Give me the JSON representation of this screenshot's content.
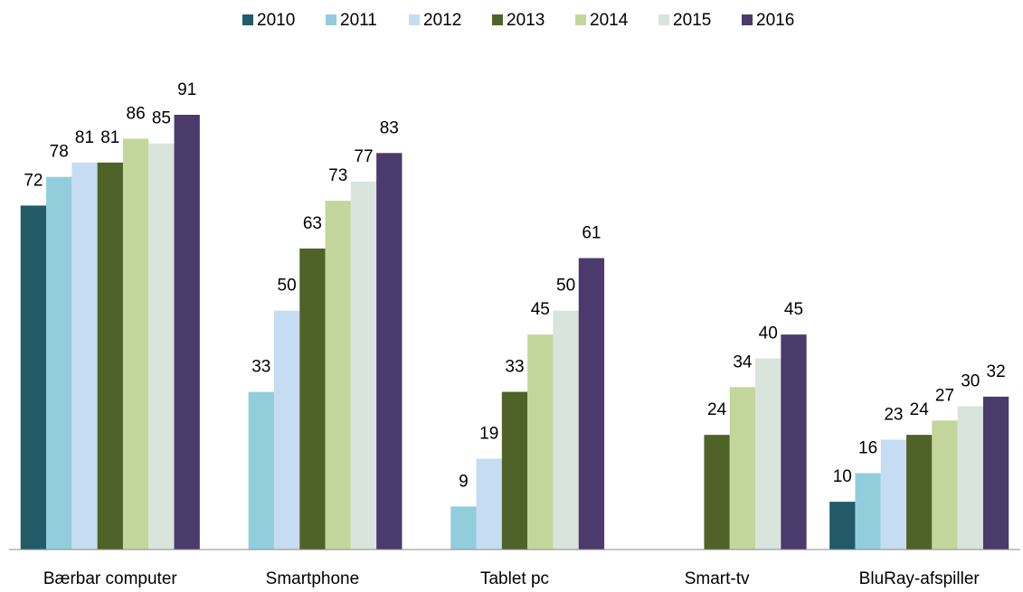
{
  "chart_data": {
    "type": "bar",
    "categories": [
      "Bærbar computer",
      "Smartphone",
      "Tablet pc",
      "Smart-tv",
      "BluRay-afspiller"
    ],
    "series": [
      {
        "name": "2010",
        "color": "#235a68",
        "values": [
          72,
          null,
          null,
          null,
          10
        ]
      },
      {
        "name": "2011",
        "color": "#92cddc",
        "values": [
          78,
          33,
          9,
          null,
          16
        ]
      },
      {
        "name": "2012",
        "color": "#c6dcf2",
        "values": [
          81,
          50,
          19,
          null,
          23
        ]
      },
      {
        "name": "2013",
        "color": "#4f6228",
        "values": [
          81,
          63,
          33,
          24,
          24
        ]
      },
      {
        "name": "2014",
        "color": "#c3d69b",
        "values": [
          86,
          73,
          45,
          34,
          27
        ]
      },
      {
        "name": "2015",
        "color": "#d8e4dc",
        "values": [
          85,
          77,
          50,
          40,
          30
        ]
      },
      {
        "name": "2016",
        "color": "#4a3b6c",
        "values": [
          91,
          83,
          61,
          45,
          32
        ]
      }
    ],
    "legend": "top"
  }
}
